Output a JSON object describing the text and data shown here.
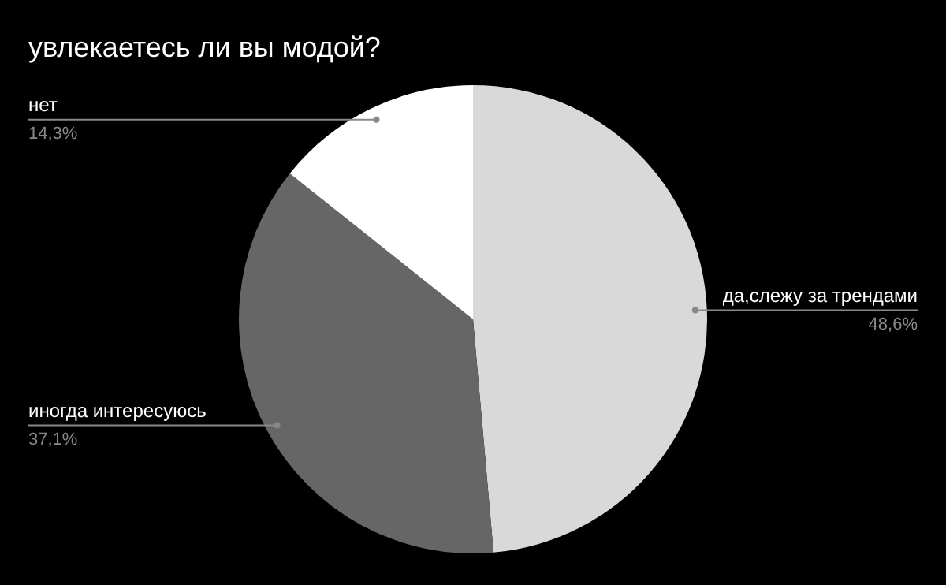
{
  "chart_data": {
    "type": "pie",
    "title": "увлекаетесь ли вы модой?",
    "categories": [
      "да,слежу за трендами",
      "иногда интересуюсь",
      "нет"
    ],
    "values": [
      48.6,
      37.1,
      14.3
    ],
    "colors": [
      "#d9d9d9",
      "#666666",
      "#ffffff"
    ],
    "value_labels": [
      "48,6%",
      "37,1%",
      "14,3%"
    ],
    "legend": false
  }
}
